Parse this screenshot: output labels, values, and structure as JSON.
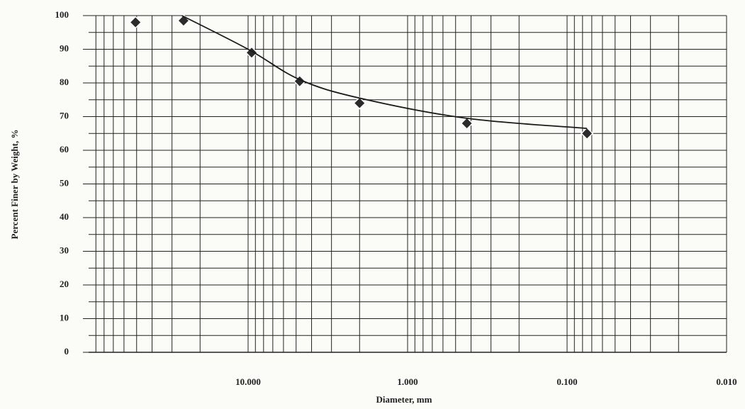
{
  "chart_data": {
    "type": "scatter",
    "x_label": "Diameter, mm",
    "y_label": "Percent Finer by Weight, %",
    "x_scale": "log",
    "x_reversed": true,
    "grid": true,
    "xlim": [
      100,
      0.01
    ],
    "xticks": [
      {
        "value": 10,
        "label": "10.000"
      },
      {
        "value": 1,
        "label": "1.000"
      },
      {
        "value": 0.1,
        "label": "0.100"
      },
      {
        "value": 0.01,
        "label": "0.010"
      }
    ],
    "ylim": [
      0,
      100
    ],
    "yticks": [
      0,
      10,
      20,
      30,
      40,
      50,
      60,
      70,
      80,
      90,
      100
    ],
    "series": [
      {
        "style": "markers",
        "color": "#2b2b2b",
        "x": [
          50.8,
          25.4,
          9.5,
          4.75,
          2.0,
          0.425,
          0.075
        ],
        "values": [
          98,
          98.5,
          89,
          80.5,
          74,
          68,
          65
        ]
      },
      {
        "style": "line",
        "color": "#1a1a1a",
        "x": [
          26,
          10,
          4.75,
          2.0,
          0.425,
          0.075
        ],
        "values": [
          100,
          90,
          81,
          75.5,
          69.5,
          66.5
        ]
      }
    ]
  }
}
